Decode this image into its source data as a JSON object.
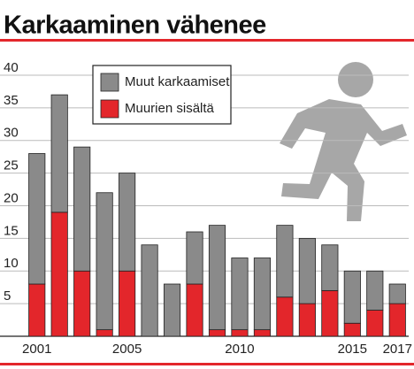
{
  "chart_data": {
    "type": "stacked_bar",
    "title": "Karkaaminen vähenee",
    "categories": [
      "2001",
      null,
      null,
      null,
      "2005",
      null,
      null,
      null,
      null,
      "2010",
      null,
      null,
      null,
      null,
      "2015",
      null,
      "2017"
    ],
    "series": [
      {
        "name": "Muurien sisältä",
        "color": "#e3262b",
        "values": [
          8,
          19,
          10,
          1,
          10,
          0,
          0,
          8,
          1,
          1,
          1,
          6,
          5,
          7,
          2,
          4,
          5
        ]
      },
      {
        "name": "Muut karkaamiset",
        "color": "#8a8a8a",
        "values": [
          20,
          18,
          19,
          21,
          15,
          14,
          8,
          8,
          16,
          11,
          11,
          11,
          10,
          7,
          8,
          6,
          3
        ]
      }
    ],
    "ylim": [
      0,
      40
    ],
    "yticks": [
      5,
      10,
      15,
      20,
      25,
      30,
      35,
      40
    ],
    "grid": true
  }
}
